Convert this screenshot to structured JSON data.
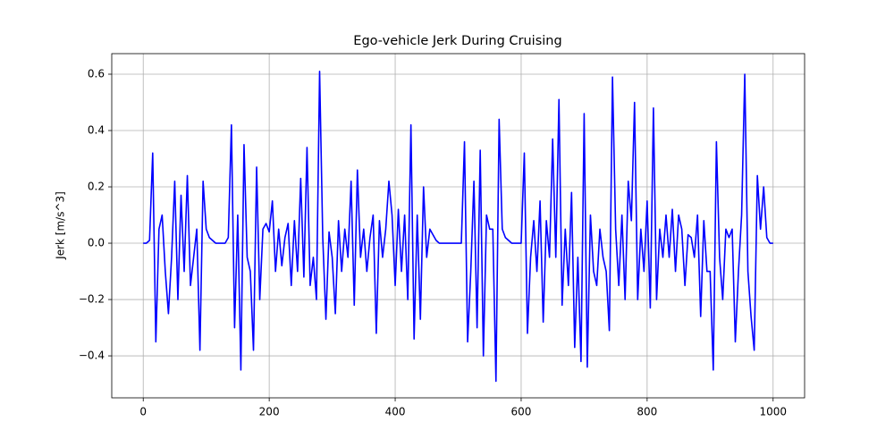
{
  "chart_data": {
    "type": "line",
    "title": "Ego-vehicle Jerk During Cruising",
    "y_label": "Jerk [m/s^3]",
    "x": [
      0,
      5,
      10,
      15,
      20,
      25,
      30,
      35,
      40,
      45,
      50,
      55,
      60,
      65,
      70,
      75,
      80,
      85,
      90,
      95,
      100,
      105,
      110,
      115,
      120,
      125,
      130,
      135,
      140,
      145,
      150,
      155,
      160,
      165,
      170,
      175,
      180,
      185,
      190,
      195,
      200,
      205,
      210,
      215,
      220,
      225,
      230,
      235,
      240,
      245,
      250,
      255,
      260,
      265,
      270,
      275,
      280,
      285,
      290,
      295,
      300,
      305,
      310,
      315,
      320,
      325,
      330,
      335,
      340,
      345,
      350,
      355,
      360,
      365,
      370,
      375,
      380,
      385,
      390,
      395,
      400,
      405,
      410,
      415,
      420,
      425,
      430,
      435,
      440,
      445,
      450,
      455,
      460,
      465,
      470,
      475,
      480,
      485,
      490,
      495,
      500,
      505,
      510,
      515,
      520,
      525,
      530,
      535,
      540,
      545,
      550,
      555,
      560,
      565,
      570,
      575,
      580,
      585,
      590,
      595,
      600,
      605,
      610,
      615,
      620,
      625,
      630,
      635,
      640,
      645,
      650,
      655,
      660,
      665,
      670,
      675,
      680,
      685,
      690,
      695,
      700,
      705,
      710,
      715,
      720,
      725,
      730,
      735,
      740,
      745,
      750,
      755,
      760,
      765,
      770,
      775,
      780,
      785,
      790,
      795,
      800,
      805,
      810,
      815,
      820,
      825,
      830,
      835,
      840,
      845,
      850,
      855,
      860,
      865,
      870,
      875,
      880,
      885,
      890,
      895,
      900,
      905,
      910,
      915,
      920,
      925,
      930,
      935,
      940,
      945,
      950,
      955,
      960,
      965,
      970,
      975,
      980,
      985,
      990,
      995,
      1000
    ],
    "values": [
      0,
      0,
      0.01,
      0.32,
      -0.35,
      0.05,
      0.1,
      -0.1,
      -0.25,
      -0.05,
      0.22,
      -0.2,
      0.17,
      -0.1,
      0.24,
      -0.15,
      -0.05,
      0.05,
      -0.38,
      0.22,
      0.05,
      0.02,
      0.01,
      0,
      0,
      0,
      0,
      0.02,
      0.42,
      -0.3,
      0.1,
      -0.45,
      0.35,
      -0.05,
      -0.1,
      -0.38,
      0.27,
      -0.2,
      0.05,
      0.07,
      0.04,
      0.15,
      -0.1,
      0.05,
      -0.08,
      0.02,
      0.07,
      -0.15,
      0.08,
      -0.1,
      0.23,
      -0.12,
      0.34,
      -0.15,
      -0.05,
      -0.2,
      0.61,
      0.02,
      -0.27,
      0.04,
      -0.05,
      -0.25,
      0.08,
      -0.1,
      0.05,
      -0.05,
      0.22,
      -0.22,
      0.26,
      -0.05,
      0.05,
      -0.1,
      0.02,
      0.1,
      -0.32,
      0.08,
      -0.05,
      0.05,
      0.22,
      0.1,
      -0.15,
      0.12,
      -0.1,
      0.1,
      -0.2,
      0.42,
      -0.34,
      0.1,
      -0.27,
      0.2,
      -0.05,
      0.05,
      0.03,
      0.01,
      0,
      0,
      0,
      0,
      0,
      0,
      0,
      0,
      0.36,
      -0.35,
      -0.1,
      0.22,
      -0.3,
      0.33,
      -0.4,
      0.1,
      0.05,
      0.05,
      -0.49,
      0.44,
      0.05,
      0.02,
      0.01,
      0,
      0,
      0,
      0,
      0.32,
      -0.32,
      -0.05,
      0.08,
      -0.1,
      0.15,
      -0.28,
      0.08,
      -0.05,
      0.37,
      -0.05,
      0.51,
      -0.22,
      0.05,
      -0.15,
      0.18,
      -0.37,
      -0.05,
      -0.42,
      0.46,
      -0.44,
      0.1,
      -0.1,
      -0.15,
      0.05,
      -0.05,
      -0.1,
      -0.31,
      0.59,
      0.05,
      -0.15,
      0.1,
      -0.2,
      0.22,
      0.08,
      0.5,
      -0.2,
      0.05,
      -0.1,
      0.15,
      -0.23,
      0.48,
      -0.2,
      0.05,
      -0.05,
      0.1,
      -0.05,
      0.12,
      -0.1,
      0.1,
      0.05,
      -0.15,
      0.03,
      0.02,
      -0.05,
      0.1,
      -0.26,
      0.08,
      -0.1,
      -0.1,
      -0.45,
      0.36,
      -0.05,
      -0.2,
      0.05,
      0.02,
      0.05,
      -0.35,
      -0.1,
      0.1,
      0.6,
      -0.1,
      -0.26,
      -0.38,
      0.24,
      0.05,
      0.2,
      0.02,
      0,
      0
    ],
    "color": "#0000ff",
    "xlim": [
      -50,
      1050
    ],
    "ylim": [
      -0.549,
      0.673
    ],
    "xticks": [
      0,
      200,
      400,
      600,
      800,
      1000
    ],
    "yticks": [
      {
        "value": -0.4,
        "label": "−0.4"
      },
      {
        "value": -0.2,
        "label": "−0.2"
      },
      {
        "value": 0,
        "label": "0.0"
      },
      0.2,
      0.4,
      0.6
    ],
    "grid": true
  }
}
